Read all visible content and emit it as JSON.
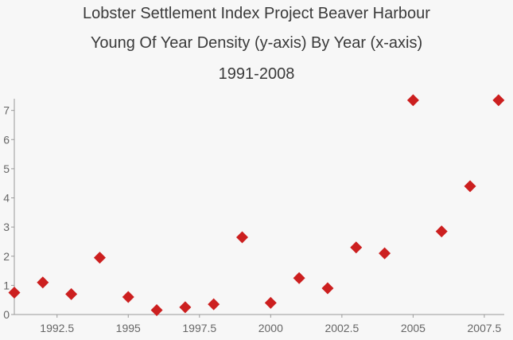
{
  "chart_data": {
    "type": "scatter",
    "title": [
      "Lobster Settlement Index Project Beaver Harbour",
      "Young Of Year Density (y-axis) By Year (x-axis)",
      "1991-2008"
    ],
    "xlabel": "",
    "ylabel": "",
    "xlim": [
      1991,
      2008.2
    ],
    "ylim": [
      0,
      7.4
    ],
    "xticks": [
      1992.5,
      1995,
      1997.5,
      2000,
      2002.5,
      2005,
      2007.5
    ],
    "xtick_labels": [
      "1992.5",
      "1995",
      "1997.5",
      "2000",
      "2002.5",
      "2005",
      "2007.5"
    ],
    "yticks": [
      0,
      1,
      2,
      3,
      4,
      5,
      6,
      7
    ],
    "ytick_labels": [
      "0",
      "1",
      "2",
      "3",
      "4",
      "5",
      "6",
      "7"
    ],
    "marker": "diamond",
    "color": "#cc1f1f",
    "series": [
      {
        "name": "Young Of Year Density",
        "x": [
          1991,
          1992,
          1993,
          1994,
          1995,
          1996,
          1997,
          1998,
          1999,
          2000,
          2001,
          2002,
          2003,
          2004,
          2005,
          2006,
          2007,
          2008
        ],
        "y": [
          0.75,
          1.1,
          0.7,
          1.95,
          0.6,
          0.15,
          0.25,
          0.35,
          2.65,
          0.4,
          1.25,
          0.9,
          2.3,
          2.1,
          7.35,
          2.85,
          4.4,
          7.35
        ]
      }
    ]
  }
}
